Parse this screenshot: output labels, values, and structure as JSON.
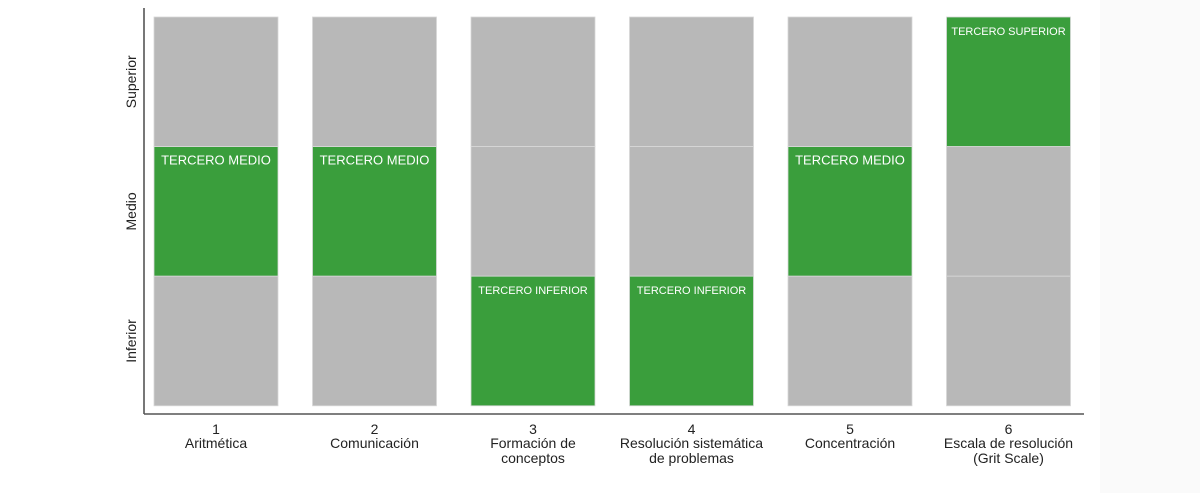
{
  "chart_data": {
    "type": "table",
    "levels": [
      "Inferior",
      "Medio",
      "Superior"
    ],
    "categories": [
      {
        "num": "1",
        "label": [
          "Aritmética"
        ],
        "tier": "Medio",
        "tier_label": "TERCERO MEDIO"
      },
      {
        "num": "2",
        "label": [
          "Comunicación"
        ],
        "tier": "Medio",
        "tier_label": "TERCERO MEDIO"
      },
      {
        "num": "3",
        "label": [
          "Formación de",
          "conceptos"
        ],
        "tier": "Inferior",
        "tier_label": "TERCERO INFERIOR"
      },
      {
        "num": "4",
        "label": [
          "Resolución sistemática",
          "de problemas"
        ],
        "tier": "Inferior",
        "tier_label": "TERCERO INFERIOR"
      },
      {
        "num": "5",
        "label": [
          "Concentración"
        ],
        "tier": "Medio",
        "tier_label": "TERCERO MEDIO"
      },
      {
        "num": "6",
        "label": [
          "Escala de resolución",
          "(Grit Scale)"
        ],
        "tier": "Superior",
        "tier_label": "TERCERO SUPERIOR"
      }
    ],
    "colors": {
      "highlight": "#3a9e3c",
      "neutral": "#b8b8b8",
      "axis": "#555555"
    },
    "legend": "none",
    "grid": false
  }
}
